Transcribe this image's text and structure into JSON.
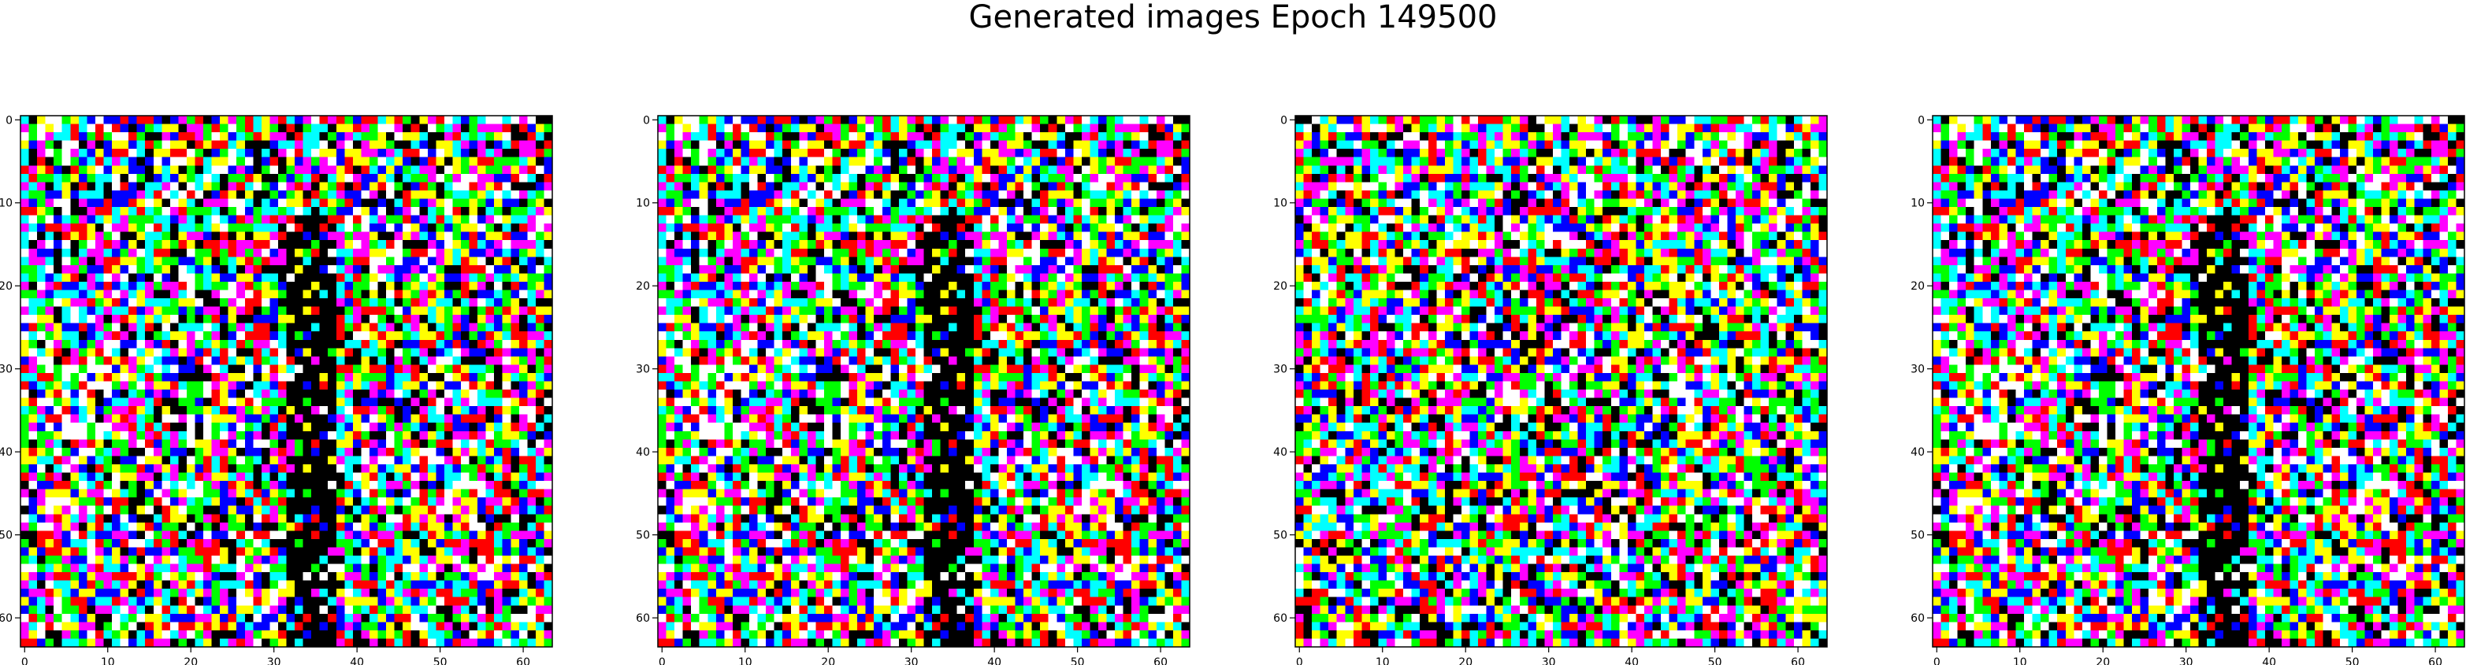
{
  "figure": {
    "title": "Generated images Epoch 149500"
  },
  "palette": [
    "#000000",
    "#ff0000",
    "#00ff00",
    "#0000ff",
    "#ffff00",
    "#00ffff",
    "#ff00ff",
    "#ffffff"
  ],
  "chart_data": [
    {
      "type": "heatmap",
      "title": "",
      "xlabel": "",
      "ylabel": "",
      "grid_size": [
        64,
        64
      ],
      "xlim": [
        -0.5,
        63.5
      ],
      "ylim": [
        63.5,
        -0.5
      ],
      "x_ticks": [
        0,
        10,
        20,
        30,
        40,
        50,
        60
      ],
      "y_ticks": [
        0,
        10,
        20,
        30,
        40,
        50,
        60
      ],
      "values": "64x64 RGB noise pixels, each channel saturated (0 or 1); black vertical streak near columns 32-37",
      "seed": 1,
      "dark_streak": true
    },
    {
      "type": "heatmap",
      "title": "",
      "xlabel": "",
      "ylabel": "",
      "grid_size": [
        64,
        64
      ],
      "xlim": [
        -0.5,
        63.5
      ],
      "ylim": [
        63.5,
        -0.5
      ],
      "x_ticks": [
        0,
        10,
        20,
        30,
        40,
        50,
        60
      ],
      "y_ticks": [
        0,
        10,
        20,
        30,
        40,
        50,
        60
      ],
      "values": "64x64 RGB noise pixels, each channel saturated (0 or 1); black vertical streak near columns 32-37",
      "seed": 1,
      "dark_streak": true
    },
    {
      "type": "heatmap",
      "title": "",
      "xlabel": "",
      "ylabel": "",
      "grid_size": [
        64,
        64
      ],
      "xlim": [
        -0.5,
        63.5
      ],
      "ylim": [
        63.5,
        -0.5
      ],
      "x_ticks": [
        0,
        10,
        20,
        30,
        40,
        50,
        60
      ],
      "y_ticks": [
        0,
        10,
        20,
        30,
        40,
        50,
        60
      ],
      "values": "64x64 RGB noise pixels, each channel saturated (0 or 1); no dominant structure",
      "seed": 7,
      "dark_streak": false
    },
    {
      "type": "heatmap",
      "title": "",
      "xlabel": "",
      "ylabel": "",
      "grid_size": [
        64,
        64
      ],
      "xlim": [
        -0.5,
        63.5
      ],
      "ylim": [
        63.5,
        -0.5
      ],
      "x_ticks": [
        0,
        10,
        20,
        30,
        40,
        50,
        60
      ],
      "y_ticks": [
        0,
        10,
        20,
        30,
        40,
        50,
        60
      ],
      "values": "64x64 RGB noise pixels, each channel saturated (0 or 1); black vertical streak near columns 32-37",
      "seed": 1,
      "dark_streak": true
    }
  ]
}
